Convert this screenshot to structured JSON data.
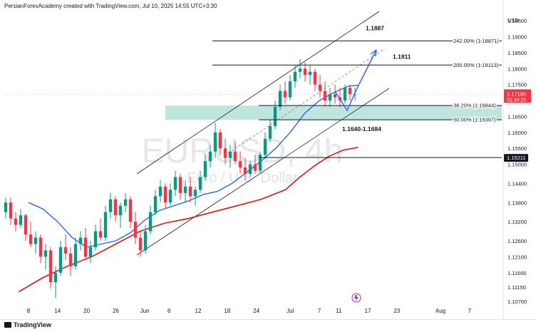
{
  "header": "PersianForexAcademy created with TradingView.com, Jul 10, 2025 14:55 UTC+3:30",
  "brand": "TradingView",
  "colors": {
    "up": "#089981",
    "down": "#f23645",
    "ma_fast": "#2962ff",
    "ma_slow": "#e0140f",
    "zone": "#a8dcd3",
    "channel": "#131722",
    "arrow": "#2962ff"
  },
  "chart_data": {
    "type": "candlestick",
    "watermark_symbol": "EURUSD, 4h",
    "watermark_name": "Euro / U.S. Dollar",
    "currency": "USD",
    "ylim": [
      1.105,
      1.1975
    ],
    "y_ticks": [
      "1.19500",
      "1.19000",
      "1.18500",
      "1.18000",
      "1.17500",
      "1.17000",
      "1.16500",
      "1.16000",
      "1.15500",
      "1.15000",
      "1.14400",
      "1.13800",
      "1.13200",
      "1.12600",
      "1.12100",
      "1.11600",
      "1.11150",
      "1.10700"
    ],
    "x_ticks": [
      {
        "label": "8",
        "day": 8
      },
      {
        "label": "14",
        "day": 14
      },
      {
        "label": "20",
        "day": 20
      },
      {
        "label": "26",
        "day": 26
      },
      {
        "label": "Jun",
        "day": 32
      },
      {
        "label": "6",
        "day": 37
      },
      {
        "label": "12",
        "day": 43
      },
      {
        "label": "18",
        "day": 49
      },
      {
        "label": "24",
        "day": 55
      },
      {
        "label": "Jul",
        "day": 62
      },
      {
        "label": "7",
        "day": 68
      },
      {
        "label": "11",
        "day": 72
      },
      {
        "label": "17",
        "day": 78
      },
      {
        "label": "23",
        "day": 84
      },
      {
        "label": "Aug",
        "day": 93
      },
      {
        "label": "7",
        "day": 99
      }
    ],
    "current_price": "1.17195",
    "countdown": "01:34:25",
    "marked_price": "1.15211",
    "fib_levels": [
      {
        "label": "242.00% (1.18871)",
        "price": 1.18871
      },
      {
        "label": "200.00% (1.18113)",
        "price": 1.18113
      },
      {
        "label": "38.20% (1.16844)",
        "price": 1.16844
      },
      {
        "label": "50.00% (1.16397)",
        "price": 1.16397
      }
    ],
    "support_zone": {
      "label": "1.1640-1.1684",
      "low": 1.164,
      "high": 1.1684
    },
    "targets": [
      {
        "label": "1.1887",
        "price": 1.1887
      },
      {
        "label": "1.1811",
        "price": 1.1811
      }
    ],
    "ma_fast": [
      [
        2,
        1.138
      ],
      [
        5,
        1.136
      ],
      [
        8,
        1.132
      ],
      [
        11,
        1.127
      ],
      [
        14,
        1.124
      ],
      [
        17,
        1.125
      ],
      [
        20,
        1.126
      ],
      [
        23,
        1.1285
      ],
      [
        26,
        1.1325
      ],
      [
        29,
        1.1355
      ],
      [
        32,
        1.137
      ],
      [
        35,
        1.1385
      ],
      [
        38,
        1.1405
      ],
      [
        41,
        1.1415
      ],
      [
        44,
        1.144
      ],
      [
        47,
        1.1475
      ],
      [
        50,
        1.151
      ],
      [
        53,
        1.155
      ],
      [
        56,
        1.16
      ],
      [
        59,
        1.166
      ],
      [
        62,
        1.17
      ],
      [
        65,
        1.1725
      ],
      [
        68,
        1.1745
      ],
      [
        70,
        1.1748
      ]
    ],
    "ma_slow": [
      [
        0,
        1.11
      ],
      [
        5,
        1.1145
      ],
      [
        10,
        1.118
      ],
      [
        15,
        1.121
      ],
      [
        20,
        1.125
      ],
      [
        25,
        1.129
      ],
      [
        30,
        1.1315
      ],
      [
        35,
        1.133
      ],
      [
        40,
        1.135
      ],
      [
        45,
        1.137
      ],
      [
        50,
        1.139
      ],
      [
        55,
        1.142
      ],
      [
        58,
        1.146
      ],
      [
        61,
        1.1495
      ],
      [
        64,
        1.1525
      ],
      [
        67,
        1.1545
      ],
      [
        70,
        1.1553
      ]
    ],
    "candles": [
      [
        1.135,
        1.1395,
        1.133,
        1.138
      ],
      [
        1.138,
        1.1395,
        1.131,
        1.133
      ],
      [
        1.133,
        1.135,
        1.129,
        1.131
      ],
      [
        1.131,
        1.136,
        1.13,
        1.134
      ],
      [
        1.134,
        1.1345,
        1.126,
        1.128
      ],
      [
        1.128,
        1.132,
        1.124,
        1.125
      ],
      [
        1.125,
        1.129,
        1.122,
        1.127
      ],
      [
        1.127,
        1.128,
        1.119,
        1.121
      ],
      [
        1.121,
        1.125,
        1.117,
        1.123
      ],
      [
        1.123,
        1.124,
        1.111,
        1.113
      ],
      [
        1.113,
        1.118,
        1.108,
        1.116
      ],
      [
        1.116,
        1.126,
        1.115,
        1.124
      ],
      [
        1.124,
        1.128,
        1.12,
        1.122
      ],
      [
        1.122,
        1.124,
        1.115,
        1.118
      ],
      [
        1.118,
        1.127,
        1.117,
        1.125
      ],
      [
        1.125,
        1.129,
        1.123,
        1.127
      ],
      [
        1.127,
        1.13,
        1.12,
        1.121
      ],
      [
        1.121,
        1.126,
        1.119,
        1.124
      ],
      [
        1.124,
        1.131,
        1.123,
        1.129
      ],
      [
        1.129,
        1.133,
        1.126,
        1.127
      ],
      [
        1.127,
        1.137,
        1.126,
        1.135
      ],
      [
        1.135,
        1.141,
        1.133,
        1.139
      ],
      [
        1.139,
        1.14,
        1.132,
        1.134
      ],
      [
        1.134,
        1.138,
        1.13,
        1.137
      ],
      [
        1.137,
        1.141,
        1.135,
        1.139
      ],
      [
        1.139,
        1.14,
        1.13,
        1.132
      ],
      [
        1.132,
        1.135,
        1.125,
        1.127
      ],
      [
        1.127,
        1.129,
        1.121,
        1.123
      ],
      [
        1.123,
        1.131,
        1.122,
        1.129
      ],
      [
        1.129,
        1.137,
        1.128,
        1.135
      ],
      [
        1.135,
        1.142,
        1.134,
        1.14
      ],
      [
        1.14,
        1.145,
        1.138,
        1.143
      ],
      [
        1.143,
        1.144,
        1.136,
        1.138
      ],
      [
        1.138,
        1.144,
        1.137,
        1.142
      ],
      [
        1.142,
        1.148,
        1.14,
        1.146
      ],
      [
        1.146,
        1.147,
        1.139,
        1.141
      ],
      [
        1.141,
        1.145,
        1.138,
        1.143
      ],
      [
        1.143,
        1.146,
        1.138,
        1.14
      ],
      [
        1.14,
        1.143,
        1.137,
        1.142
      ],
      [
        1.142,
        1.148,
        1.141,
        1.146
      ],
      [
        1.146,
        1.153,
        1.145,
        1.151
      ],
      [
        1.151,
        1.156,
        1.149,
        1.154
      ],
      [
        1.154,
        1.163,
        1.152,
        1.16
      ],
      [
        1.16,
        1.161,
        1.153,
        1.155
      ],
      [
        1.155,
        1.158,
        1.15,
        1.152
      ],
      [
        1.152,
        1.156,
        1.149,
        1.154
      ],
      [
        1.154,
        1.157,
        1.15,
        1.151
      ],
      [
        1.151,
        1.154,
        1.147,
        1.149
      ],
      [
        1.149,
        1.152,
        1.145,
        1.147
      ],
      [
        1.147,
        1.151,
        1.146,
        1.15
      ],
      [
        1.15,
        1.153,
        1.147,
        1.148
      ],
      [
        1.148,
        1.154,
        1.147,
        1.153
      ],
      [
        1.153,
        1.16,
        1.152,
        1.158
      ],
      [
        1.158,
        1.164,
        1.157,
        1.162
      ],
      [
        1.162,
        1.17,
        1.161,
        1.168
      ],
      [
        1.168,
        1.175,
        1.167,
        1.173
      ],
      [
        1.173,
        1.176,
        1.169,
        1.171
      ],
      [
        1.171,
        1.178,
        1.17,
        1.176
      ],
      [
        1.176,
        1.181,
        1.174,
        1.179
      ],
      [
        1.179,
        1.183,
        1.177,
        1.18
      ],
      [
        1.18,
        1.182,
        1.176,
        1.178
      ],
      [
        1.178,
        1.181,
        1.175,
        1.179
      ],
      [
        1.179,
        1.18,
        1.173,
        1.175
      ],
      [
        1.175,
        1.178,
        1.171,
        1.173
      ],
      [
        1.173,
        1.176,
        1.168,
        1.17
      ],
      [
        1.17,
        1.174,
        1.168,
        1.172
      ],
      [
        1.172,
        1.175,
        1.169,
        1.171
      ],
      [
        1.171,
        1.174,
        1.168,
        1.17
      ],
      [
        1.17,
        1.175,
        1.169,
        1.174
      ],
      [
        1.174,
        1.175,
        1.17,
        1.172
      ],
      [
        1.172,
        1.174,
        1.17,
        1.172
      ]
    ]
  }
}
